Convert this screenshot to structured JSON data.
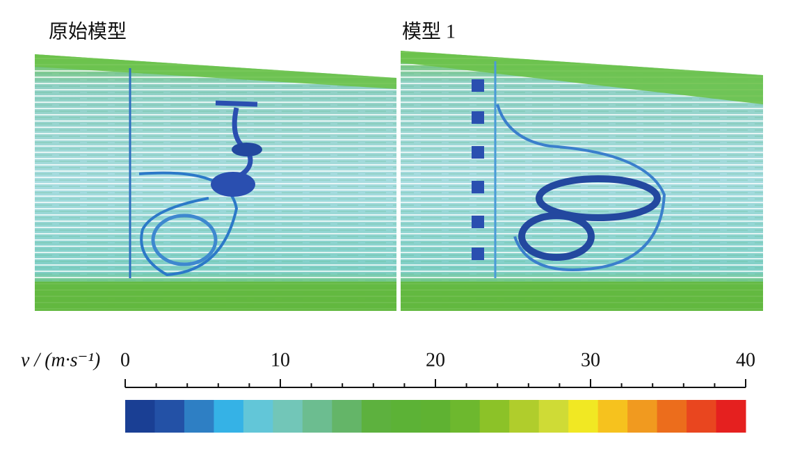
{
  "panels": [
    {
      "title": "原始模型"
    },
    {
      "title": "模型 1"
    }
  ],
  "colorbar": {
    "label": "v / (m·s⁻¹)",
    "lim": [
      0,
      40
    ],
    "ticks": [
      0,
      10,
      20,
      30,
      40
    ],
    "minor_ticks": [
      2,
      4,
      6,
      8,
      12,
      14,
      16,
      18,
      22,
      24,
      26,
      28,
      32,
      34,
      36,
      38
    ],
    "colors": [
      "#1a3f94",
      "#2351a6",
      "#2e7fc4",
      "#35b2e6",
      "#62c6d8",
      "#72c6b8",
      "#6cbd90",
      "#64b568",
      "#5db13e",
      "#5cb236",
      "#5fb232",
      "#6db82e",
      "#8cc228",
      "#b0cd2c",
      "#cfdb36",
      "#f1e823",
      "#f6c21e",
      "#f19a1f",
      "#ec6d1c",
      "#e9461f",
      "#e5201f"
    ]
  }
}
